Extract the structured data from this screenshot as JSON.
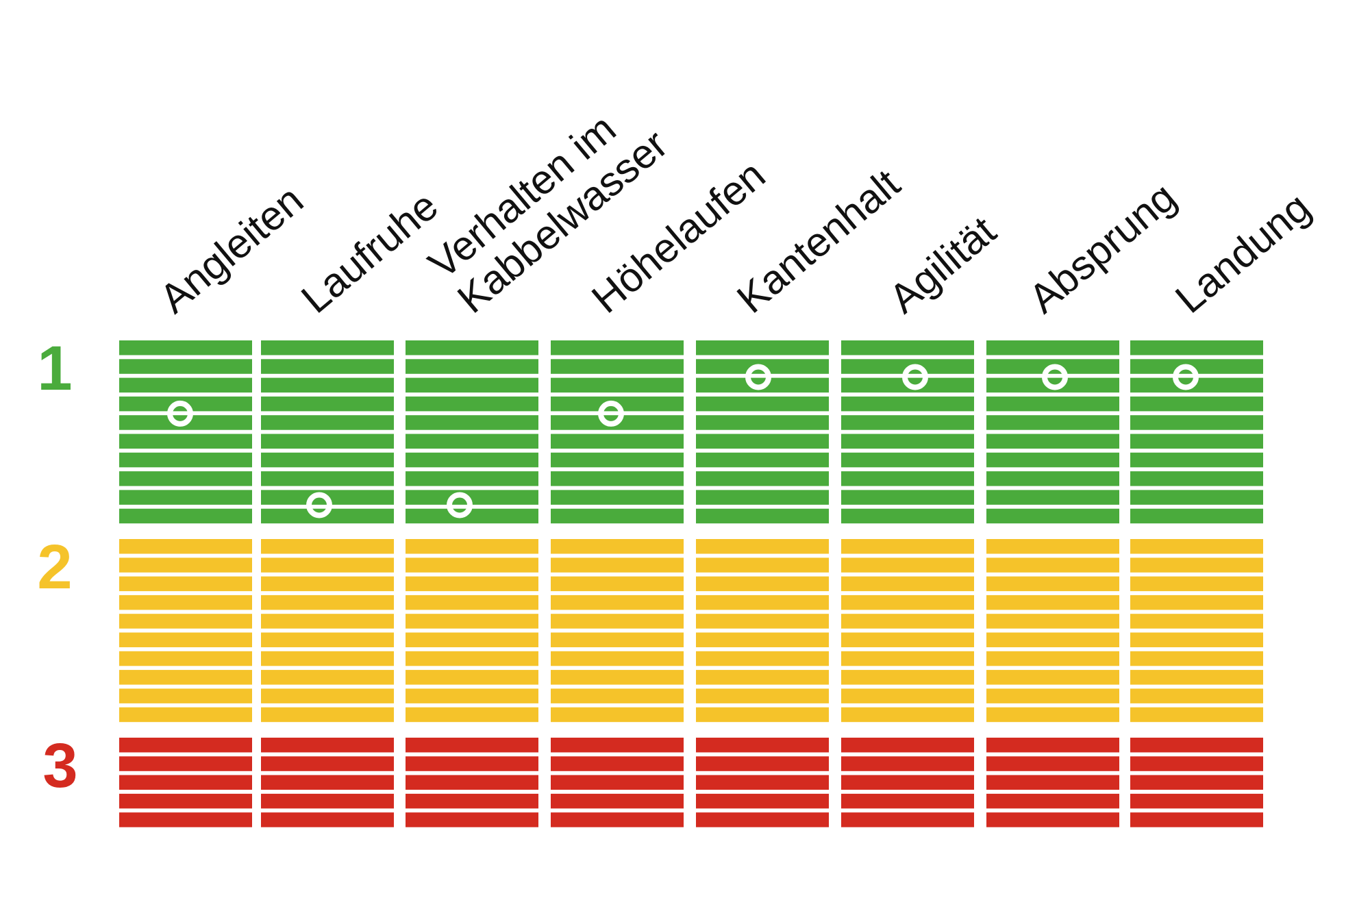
{
  "chart_data": {
    "type": "heatmap",
    "columns": [
      {
        "label_lines": [
          "Angleiten"
        ],
        "rating": 1.4
      },
      {
        "label_lines": [
          "Laufruhe"
        ],
        "rating": 1.9
      },
      {
        "label_lines": [
          "Verhalten im",
          "Kabbelwasser"
        ],
        "rating": 1.9
      },
      {
        "label_lines": [
          "Höhelaufen"
        ],
        "rating": 1.4
      },
      {
        "label_lines": [
          "Kantenhalt"
        ],
        "rating": 1.2
      },
      {
        "label_lines": [
          "Agilität"
        ],
        "rating": 1.2
      },
      {
        "label_lines": [
          "Absprung"
        ],
        "rating": 1.2
      },
      {
        "label_lines": [
          "Landung"
        ],
        "rating": 1.2
      }
    ],
    "scale": [
      {
        "label": "1",
        "color": "#4aab3c",
        "stripes": 10
      },
      {
        "label": "2",
        "color": "#f5c32a",
        "stripes": 10
      },
      {
        "label": "3",
        "color": "#d42b20",
        "stripes": 5
      }
    ],
    "marker_color": "#ffffff"
  }
}
